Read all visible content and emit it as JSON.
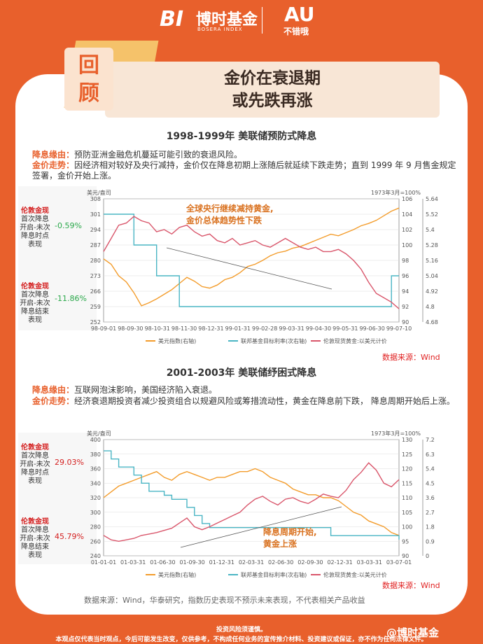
{
  "header": {
    "logo_mark": "BI",
    "logo_name": "博时基金",
    "logo_sub": "BOSERA INDEX",
    "au_mark": "AU",
    "au_sub": "不错哦"
  },
  "badge": {
    "line1": "回",
    "line2": "顾"
  },
  "title": {
    "line1": "金价在衰退期",
    "line2": "或先跌再涨"
  },
  "sections": [
    {
      "title": "1998-1999年 美联储预防式降息",
      "reason_label": "降息缘由：",
      "reason": "预防亚洲金融危机蔓延可能引致的衰退风险。",
      "trend_label": "金价走势：",
      "trend": "因经济相对较好及央行减持，金价仅在降息初期上涨随后就延续下跌走势；直到 1999 年 9 月售金规定签署，金价开始上涨。",
      "stat1_title": "伦敦金现",
      "stat1_desc": "首次降息开启-未次降息时点表现",
      "stat1_value": "-0.59%",
      "stat2_title": "伦敦金现",
      "stat2_desc": "首次降息开启-未次降息结束表现",
      "stat2_value": "-11.86%",
      "source": "数据来源：Wind"
    },
    {
      "title": "2001-2003年 美联储纾困式降息",
      "reason_label": "降息缘由：",
      "reason": "互联网泡沫影响，美国经济陷入衰退。",
      "trend_label": "金价走势：",
      "trend": "经济衰退期投资者减少投资组合以规避风险或筹措流动性，黄金在降息前下跌， 降息周期开始后上涨。",
      "stat1_title": "伦敦金现",
      "stat1_desc": "首次降息开启-未次降息时点表现",
      "stat1_value": "29.03%",
      "stat2_title": "伦敦金现",
      "stat2_desc": "首次降息开启-未次降息结束表现",
      "stat2_value": "45.79%",
      "source": "数据来源：Wind"
    }
  ],
  "note": "数据来源：Wind，华泰研究，指数历史表现不预示未来表现，不代表相关产品收益",
  "bottom": {
    "line1": "投资风险须谨慎。",
    "line2": "本观点仅代表当时观点，今后可能发生改变，仅供参考，不构成任何业务的宣传推介材料、投资建议或保证，亦不作为任何法律文件。"
  },
  "watermark": "@博时基金",
  "colors": {
    "dxy": "#f39c2b",
    "fed": "#4ab5c4",
    "gold": "#d9566b",
    "accent": "#e8602c"
  },
  "chart_data": [
    {
      "type": "line",
      "left_unit": "美元/盎司",
      "right_unit": "1973年3月=100%",
      "x_ticks": [
        "98-09-01",
        "98-09-30",
        "98-10-31",
        "98-11-30",
        "98-12-31",
        "99-01-31",
        "99-02-28",
        "99-03-31",
        "99-04-30",
        "99-05-31",
        "99-06-30",
        "99-07-10"
      ],
      "y_left": {
        "min": 252,
        "max": 308,
        "ticks": [
          252,
          259,
          266,
          273,
          280,
          287,
          294,
          301,
          308
        ]
      },
      "y_right1": {
        "min": 90,
        "max": 106,
        "ticks": [
          90,
          92,
          94,
          96,
          98,
          100,
          102,
          104,
          106
        ]
      },
      "y_right2": {
        "min": 4.68,
        "max": 5.64,
        "ticks": [
          4.68,
          4.8,
          4.92,
          5.04,
          5.16,
          5.28,
          5.4,
          5.52,
          5.64
        ]
      },
      "annotation": [
        "全球央行继续减持黄金,",
        "金价总体趋势性下跌"
      ],
      "legend": [
        "美元指数(右轴)",
        "联邦基金目标利率(次右轴)",
        "伦敦现货黄金:以美元计价"
      ],
      "series": [
        {
          "name": "美元指数(右轴)",
          "axis": "right1",
          "values": [
            98.2,
            97.5,
            96.0,
            95.2,
            93.8,
            92.1,
            92.5,
            93.0,
            93.6,
            94.2,
            95.0,
            95.8,
            95.3,
            94.6,
            94.4,
            94.8,
            95.5,
            95.8,
            96.4,
            97.2,
            97.5,
            98.0,
            98.6,
            99.0,
            99.2,
            99.6,
            99.8,
            100.2,
            100.6,
            101.0,
            101.4,
            101.2,
            101.6,
            102.0,
            102.5,
            102.8,
            103.2,
            103.8,
            104.4,
            104.8
          ]
        },
        {
          "name": "联邦基金目标利率(次右轴)",
          "axis": "right2",
          "values": [
            5.52,
            5.52,
            5.52,
            5.52,
            5.28,
            5.28,
            5.28,
            5.04,
            5.04,
            5.04,
            4.8,
            4.8,
            4.8,
            4.8,
            4.8,
            4.8,
            4.8,
            4.8,
            4.8,
            4.8,
            4.8,
            4.8,
            4.8,
            4.8,
            4.8,
            4.8,
            4.8,
            4.8,
            4.8,
            4.8,
            4.8,
            4.8,
            4.8,
            4.8,
            4.8,
            4.8,
            4.8,
            4.8,
            5.04,
            5.04
          ]
        },
        {
          "name": "伦敦现货黄金:以美元计价",
          "axis": "left",
          "values": [
            284,
            290,
            296,
            297,
            300,
            298,
            297,
            293,
            294,
            292,
            295,
            296,
            293,
            291,
            292,
            289,
            288,
            290,
            287,
            288,
            289,
            287,
            286,
            288,
            290,
            288,
            286,
            285,
            286,
            284,
            284,
            285,
            283,
            280,
            276,
            270,
            265,
            263,
            261,
            258
          ]
        }
      ]
    },
    {
      "type": "line",
      "left_unit": "美元/盎司",
      "right_unit": "1973年3月=100%",
      "x_ticks": [
        "01-01-01",
        "01-03-31",
        "01-06-30",
        "01-09-30",
        "01-12-31",
        "02-03-31",
        "02-06-30",
        "02-09-30",
        "02-12-31",
        "03-03-31",
        "03-07-01"
      ],
      "y_left": {
        "min": 240,
        "max": 400,
        "ticks": [
          240,
          260,
          280,
          300,
          320,
          340,
          360,
          380,
          400
        ]
      },
      "y_right1": {
        "min": 90,
        "max": 130,
        "ticks": [
          90,
          95,
          100,
          105,
          110,
          115,
          120,
          125,
          130
        ]
      },
      "y_right2": {
        "min": 0,
        "max": 7.2,
        "ticks": [
          0,
          0.9,
          1.8,
          2.7,
          3.6,
          4.5,
          5.4,
          6.3,
          7.2
        ]
      },
      "annotation": [
        "降息周期开始,",
        "黄金上涨"
      ],
      "legend": [
        "美元指数(右轴)",
        "联邦基金目标利率(次右轴)",
        "伦敦现货黄金:以美元计价"
      ],
      "series": [
        {
          "name": "美元指数(右轴)",
          "axis": "right1",
          "values": [
            110,
            112,
            114,
            115,
            116,
            117,
            118,
            119,
            117,
            116,
            118,
            119,
            118,
            117,
            116,
            117,
            117,
            118,
            119,
            119,
            120,
            119,
            117,
            116,
            115,
            113,
            112,
            111,
            111,
            110,
            110,
            109,
            107,
            105,
            104,
            102,
            101,
            100,
            98,
            97
          ]
        },
        {
          "name": "联邦基金目标利率(次右轴)",
          "axis": "right2",
          "values": [
            6.5,
            6.0,
            5.5,
            5.5,
            5.0,
            4.5,
            4.0,
            4.0,
            3.75,
            3.5,
            3.5,
            3.0,
            2.5,
            2.0,
            1.75,
            1.75,
            1.75,
            1.75,
            1.75,
            1.75,
            1.75,
            1.75,
            1.75,
            1.75,
            1.75,
            1.75,
            1.75,
            1.75,
            1.75,
            1.75,
            1.25,
            1.25,
            1.25,
            1.25,
            1.25,
            1.25,
            1.25,
            1.25,
            1.25,
            1.0
          ]
        },
        {
          "name": "伦敦现货黄金:以美元计价",
          "axis": "left",
          "values": [
            268,
            262,
            260,
            262,
            264,
            268,
            270,
            272,
            275,
            278,
            285,
            292,
            280,
            276,
            280,
            285,
            290,
            295,
            300,
            310,
            318,
            322,
            315,
            310,
            318,
            320,
            315,
            312,
            318,
            325,
            322,
            320,
            330,
            345,
            355,
            368,
            358,
            340,
            335,
            345
          ]
        }
      ]
    }
  ]
}
